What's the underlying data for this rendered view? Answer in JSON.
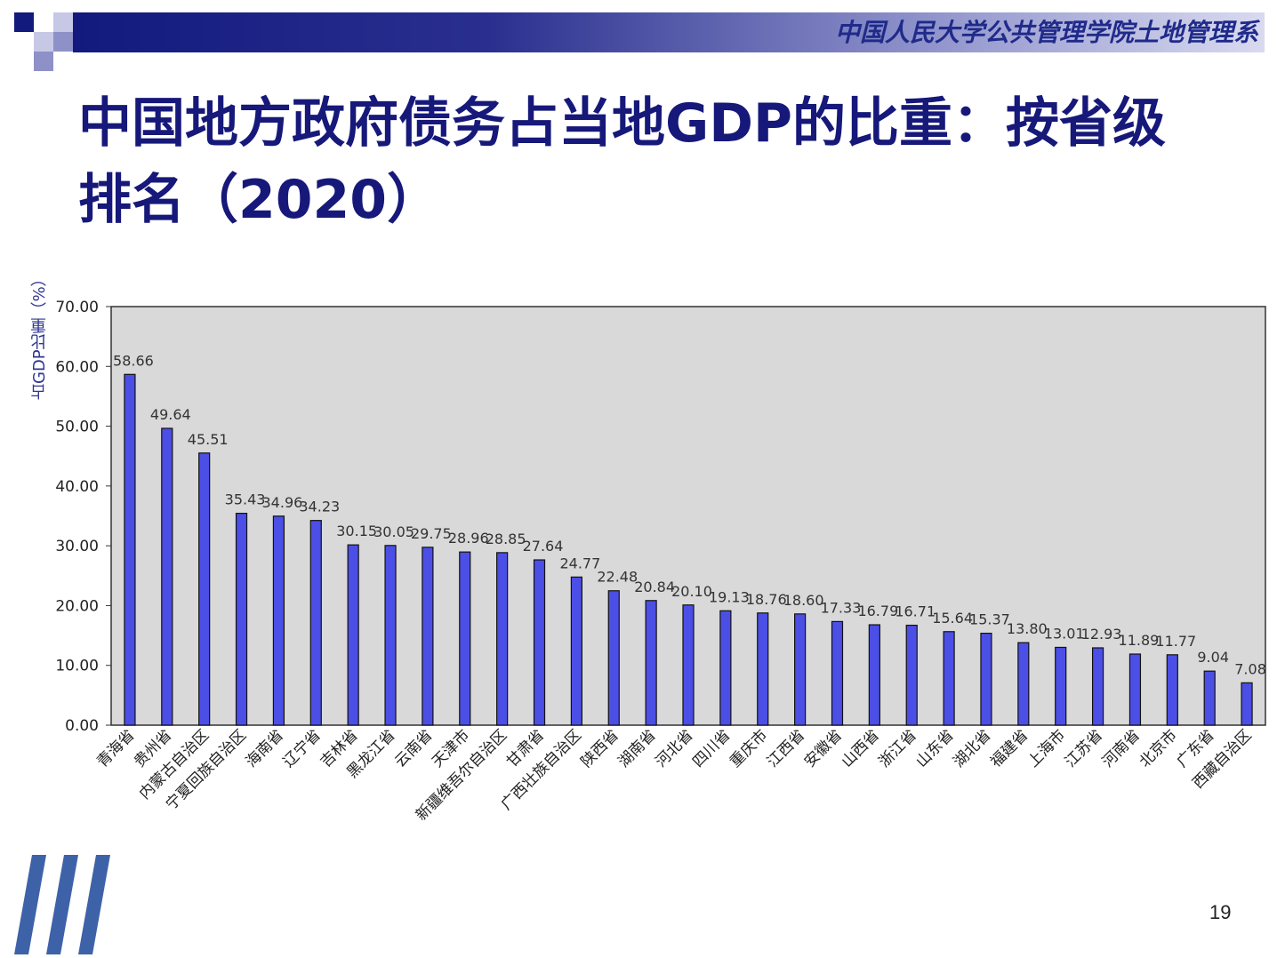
{
  "header": {
    "org": "中国人民大学公共管理学院土地管理系"
  },
  "slide": {
    "title": "中国地方政府债务占当地GDP的比重：按省级排名（2020）",
    "page_number": "19"
  },
  "colors": {
    "bar": "#4b4fe6",
    "plot_bg": "#d9d9d9",
    "title": "#16187a",
    "header": "#1f2a8a"
  },
  "chart_data": {
    "type": "bar",
    "ylabel": "占GDP比重（%）",
    "ylim": [
      0,
      70
    ],
    "yticks": [
      "0.00",
      "10.00",
      "20.00",
      "30.00",
      "40.00",
      "50.00",
      "60.00",
      "70.00"
    ],
    "grid": false,
    "legend": "none",
    "categories": [
      "青海省",
      "贵州省",
      "内蒙古自治区",
      "宁夏回族自治区",
      "海南省",
      "辽宁省",
      "吉林省",
      "黑龙江省",
      "云南省",
      "天津市",
      "新疆维吾尔自治区",
      "甘肃省",
      "广西壮族自治区",
      "陕西省",
      "湖南省",
      "河北省",
      "四川省",
      "重庆市",
      "江西省",
      "安徽省",
      "山西省",
      "浙江省",
      "山东省",
      "湖北省",
      "福建省",
      "上海市",
      "江苏省",
      "河南省",
      "北京市",
      "广东省",
      "西藏自治区"
    ],
    "values": [
      58.66,
      49.64,
      45.51,
      35.43,
      34.96,
      34.23,
      30.15,
      30.05,
      29.75,
      28.96,
      28.85,
      27.64,
      24.77,
      22.48,
      20.84,
      20.1,
      19.13,
      18.76,
      18.6,
      17.33,
      16.79,
      16.71,
      15.64,
      15.37,
      13.8,
      13.01,
      12.93,
      11.89,
      11.77,
      9.04,
      7.08
    ],
    "value_labels": [
      "58.66",
      "49.64",
      "45.51",
      "35.43",
      "34.96",
      "34.23",
      "30.15",
      "30.05",
      "29.75",
      "28.96",
      "28.85",
      "27.64",
      "24.77",
      "22.48",
      "20.84",
      "20.10",
      "19.13",
      "18.76",
      "18.60",
      "17.33",
      "16.79",
      "16.71",
      "15.64",
      "15.37",
      "13.80",
      "13.01",
      "12.93",
      "11.89",
      "11.77",
      "9.04",
      "7.08"
    ]
  }
}
